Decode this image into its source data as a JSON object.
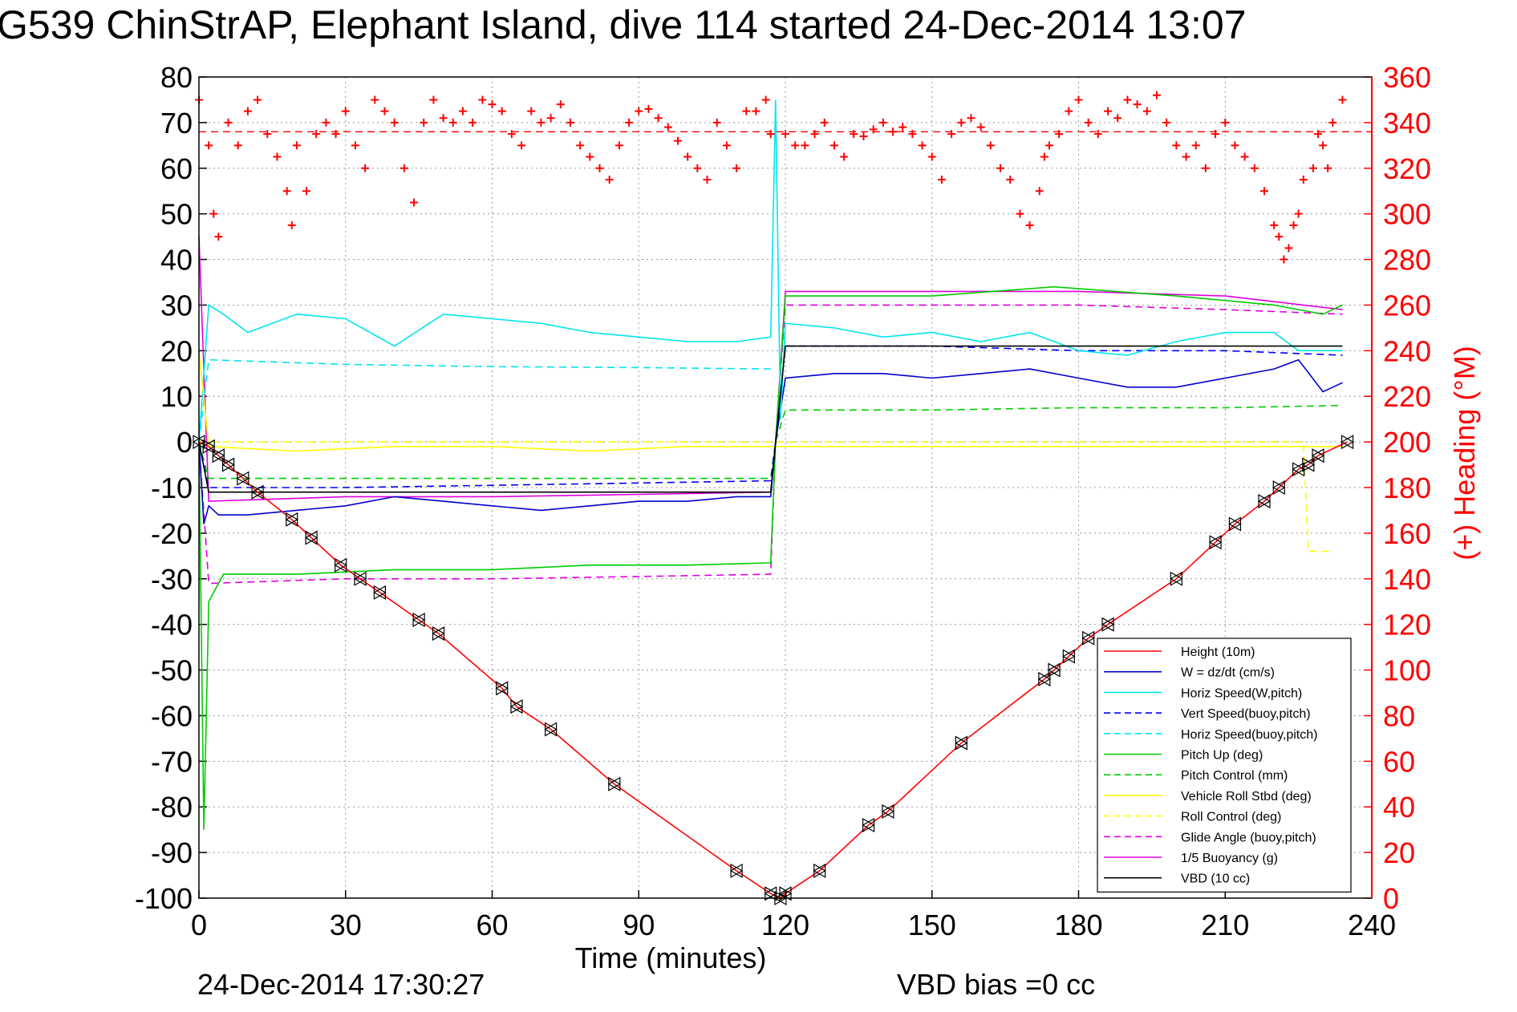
{
  "colors": {
    "height": "#ff0000",
    "w": "#0000cc",
    "horiz_speed": "#00e5ee",
    "vert_speed_buoy": "#0000ff",
    "horiz_speed_buoy": "#00e5ee",
    "pitch_up": "#00cc00",
    "pitch_control": "#00cc00",
    "roll": "#ffff00",
    "roll_control": "#ffff00",
    "glide_angle": "#dd00dd",
    "buoyancy": "#dd00dd",
    "vbd": "#000000",
    "heading": "#ff0000"
  },
  "chart_data": {
    "type": "line",
    "title": "G539 ChinStrAP, Elephant Island, dive 114 started 24-Dec-2014 13:07",
    "xlabel": "Time (minutes)",
    "ylabel": "",
    "y2label": "(+) Heading (°M)",
    "xlim": [
      0,
      240
    ],
    "ylim": [
      -100,
      80
    ],
    "y2lim": [
      0,
      360
    ],
    "grid": true,
    "legend_position": "lower-right",
    "xticks": [
      "0",
      "30",
      "60",
      "90",
      "120",
      "150",
      "180",
      "210",
      "240"
    ],
    "yticks": [
      "80",
      "70",
      "60",
      "50",
      "40",
      "30",
      "20",
      "10",
      "0",
      "-10",
      "-20",
      "-30",
      "-40",
      "-50",
      "-60",
      "-70",
      "-80",
      "-90",
      "-100"
    ],
    "y2ticks": [
      "360",
      "340",
      "320",
      "300",
      "280",
      "260",
      "240",
      "220",
      "200",
      "180",
      "160",
      "140",
      "120",
      "100",
      "80",
      "60",
      "40",
      "20",
      "0"
    ],
    "series": [
      {
        "name": "Height (10m)",
        "style": "solid",
        "color_key": "height",
        "x": [
          0,
          2,
          4,
          6,
          9,
          12,
          19,
          23,
          29,
          33,
          37,
          45,
          49,
          62,
          65,
          72,
          85,
          110,
          117,
          119,
          120,
          127,
          137,
          141,
          156,
          173,
          175,
          178,
          182,
          186,
          200,
          208,
          212,
          218,
          221,
          225,
          227,
          229,
          235
        ],
        "y": [
          0,
          -1,
          -3,
          -5,
          -8,
          -11,
          -17,
          -21,
          -27,
          -30,
          -33,
          -39,
          -42,
          -54,
          -58,
          -63,
          -75,
          -94,
          -99,
          -100,
          -99,
          -94,
          -84,
          -81,
          -66,
          -52,
          -50,
          -47,
          -43,
          -40,
          -30,
          -22,
          -18,
          -13,
          -10,
          -6,
          -5,
          -3,
          0
        ]
      },
      {
        "name": "W = dz/dt (cm/s)",
        "style": "solid",
        "color_key": "w",
        "x": [
          0,
          1,
          2,
          4,
          10,
          20,
          30,
          40,
          50,
          60,
          70,
          80,
          90,
          100,
          110,
          117,
          118,
          120,
          130,
          140,
          150,
          160,
          170,
          180,
          190,
          200,
          210,
          220,
          225,
          230,
          234
        ],
        "y": [
          0,
          -18,
          -14,
          -16,
          -16,
          -15,
          -14,
          -12,
          -13,
          -14,
          -15,
          -14,
          -13,
          -13,
          -12,
          -12,
          0,
          14,
          15,
          15,
          14,
          15,
          16,
          14,
          12,
          12,
          14,
          16,
          18,
          11,
          13
        ]
      },
      {
        "name": "Horiz Speed(W,pitch)",
        "style": "solid",
        "color_key": "horiz_speed",
        "x": [
          0,
          2,
          5,
          10,
          20,
          30,
          40,
          50,
          60,
          70,
          80,
          90,
          100,
          110,
          117,
          118,
          119,
          120,
          130,
          140,
          150,
          160,
          170,
          180,
          190,
          200,
          210,
          220,
          225,
          230,
          234
        ],
        "y": [
          0,
          30,
          28,
          24,
          28,
          27,
          21,
          28,
          27,
          26,
          24,
          23,
          22,
          22,
          23,
          75,
          5,
          26,
          25,
          23,
          24,
          22,
          24,
          20,
          19,
          22,
          24,
          24,
          20,
          20,
          20
        ]
      },
      {
        "name": "Vert Speed(buoy,pitch)",
        "style": "dashed",
        "color_key": "vert_speed_buoy",
        "x": [
          0,
          2,
          30,
          60,
          90,
          117,
          118,
          120,
          150,
          180,
          210,
          234
        ],
        "y": [
          0,
          -10,
          -10,
          -9.5,
          -9,
          -8.5,
          0,
          21,
          21,
          20,
          20,
          19
        ]
      },
      {
        "name": "Horiz Speed(buoy,pitch)",
        "style": "dashed",
        "color_key": "horiz_speed_buoy",
        "x": [
          0,
          2,
          30,
          60,
          90,
          117
        ],
        "y": [
          0,
          18,
          17,
          16.5,
          16.3,
          16
        ]
      },
      {
        "name": "Pitch Up (deg)",
        "style": "solid",
        "color_key": "pitch_up",
        "x": [
          0,
          1,
          2,
          5,
          20,
          40,
          60,
          80,
          100,
          117,
          118,
          120,
          150,
          175,
          200,
          220,
          230,
          234
        ],
        "y": [
          0,
          -85,
          -35,
          -29,
          -29,
          -28,
          -28,
          -27,
          -27,
          -26.5,
          0,
          32,
          32,
          34,
          32,
          30,
          28,
          30
        ]
      },
      {
        "name": "Pitch Control (mm)",
        "style": "dashed",
        "color_key": "pitch_control",
        "x": [
          0,
          2,
          30,
          60,
          90,
          117,
          118,
          120,
          150,
          180,
          210,
          234
        ],
        "y": [
          0,
          -8,
          -8,
          -8,
          -8,
          -8,
          0,
          7,
          7,
          7.5,
          7.5,
          8
        ]
      },
      {
        "name": "Vehicle Roll Stbd (deg)",
        "style": "solid",
        "color_key": "roll",
        "x": [
          0,
          2,
          20,
          40,
          60,
          80,
          100,
          117,
          120,
          140,
          160,
          180,
          200,
          220,
          226,
          234
        ],
        "y": [
          20,
          -1,
          -2,
          -1,
          -1,
          -2,
          -1,
          -1,
          -1,
          -1,
          -1,
          -1,
          -1,
          -1,
          -1,
          -1
        ]
      },
      {
        "name": "Roll Control (deg)",
        "style": "dashed",
        "color_key": "roll_control",
        "x": [
          0,
          2,
          117,
          120,
          226,
          227,
          232
        ],
        "y": [
          0,
          0,
          0,
          0,
          0,
          -24,
          -24
        ]
      },
      {
        "name": "Glide Angle (buoy,pitch)",
        "style": "dashed",
        "color_key": "glide_angle",
        "x": [
          0,
          2,
          30,
          60,
          90,
          117,
          118,
          120,
          150,
          180,
          210,
          234
        ],
        "y": [
          0,
          -31,
          -30,
          -30,
          -29.5,
          -29,
          0,
          30,
          30,
          30,
          29,
          28
        ]
      },
      {
        "name": "1/5 Buoyancy (g)",
        "style": "solid",
        "color_key": "buoyancy",
        "x": [
          0,
          2,
          30,
          60,
          90,
          117,
          118,
          120,
          150,
          180,
          210,
          234
        ],
        "y": [
          45,
          -13,
          -12,
          -12,
          -11.5,
          -11,
          0,
          33,
          33,
          33,
          32,
          29
        ]
      },
      {
        "name": "VBD (10 cc)",
        "style": "solid",
        "color_key": "vbd",
        "x": [
          0,
          2,
          117,
          120,
          234
        ],
        "y": [
          0,
          -11,
          -11,
          21,
          21
        ]
      }
    ],
    "heading": {
      "color_key": "heading",
      "marker": "+",
      "axis": "right",
      "reference": 336,
      "x": [
        0,
        2,
        3,
        4,
        6,
        8,
        10,
        12,
        14,
        16,
        18,
        19,
        20,
        22,
        24,
        26,
        28,
        30,
        32,
        34,
        36,
        38,
        40,
        42,
        44,
        46,
        48,
        50,
        52,
        54,
        56,
        58,
        60,
        62,
        64,
        66,
        68,
        70,
        72,
        74,
        76,
        78,
        80,
        82,
        84,
        86,
        88,
        90,
        92,
        94,
        96,
        98,
        100,
        102,
        104,
        106,
        108,
        110,
        112,
        114,
        116,
        117,
        120,
        122,
        124,
        126,
        128,
        130,
        132,
        134,
        136,
        138,
        140,
        142,
        144,
        146,
        148,
        150,
        152,
        154,
        156,
        158,
        160,
        162,
        164,
        166,
        168,
        170,
        172,
        173,
        174,
        176,
        178,
        180,
        182,
        184,
        186,
        188,
        190,
        192,
        194,
        196,
        198,
        200,
        202,
        204,
        206,
        208,
        210,
        212,
        214,
        216,
        218,
        220,
        221,
        222,
        223,
        224,
        225,
        226,
        228,
        229,
        230,
        231,
        232,
        234
      ],
      "y": [
        350,
        330,
        300,
        290,
        340,
        330,
        345,
        350,
        335,
        325,
        310,
        295,
        330,
        310,
        335,
        340,
        335,
        345,
        330,
        320,
        350,
        345,
        340,
        320,
        305,
        340,
        350,
        342,
        340,
        345,
        340,
        350,
        348,
        345,
        335,
        330,
        345,
        340,
        342,
        348,
        340,
        330,
        325,
        320,
        315,
        330,
        340,
        345,
        346,
        342,
        338,
        332,
        325,
        320,
        315,
        340,
        330,
        320,
        345,
        345,
        350,
        335,
        335,
        330,
        330,
        335,
        340,
        330,
        325,
        335,
        334,
        337,
        340,
        336,
        338,
        335,
        330,
        325,
        315,
        335,
        340,
        342,
        338,
        330,
        320,
        315,
        300,
        295,
        310,
        325,
        330,
        335,
        345,
        350,
        340,
        335,
        345,
        342,
        350,
        348,
        345,
        352,
        340,
        330,
        325,
        330,
        320,
        335,
        340,
        330,
        325,
        320,
        310,
        295,
        290,
        280,
        285,
        295,
        300,
        315,
        320,
        335,
        330,
        320,
        340,
        350
      ]
    },
    "height_markers": {
      "marker": "triangles",
      "color": "#000000",
      "x": [
        0,
        2,
        4,
        6,
        9,
        12,
        19,
        23,
        29,
        33,
        37,
        45,
        49,
        62,
        65,
        72,
        85,
        110,
        117,
        119,
        120,
        127,
        137,
        141,
        156,
        173,
        175,
        178,
        182,
        186,
        200,
        208,
        212,
        218,
        221,
        225,
        227,
        229,
        235
      ],
      "y": [
        0,
        -1,
        -3,
        -5,
        -8,
        -11,
        -17,
        -21,
        -27,
        -30,
        -33,
        -39,
        -42,
        -54,
        -58,
        -63,
        -75,
        -94,
        -99,
        -100,
        -99,
        -94,
        -84,
        -81,
        -66,
        -52,
        -50,
        -47,
        -43,
        -40,
        -30,
        -22,
        -18,
        -13,
        -10,
        -6,
        -5,
        -3,
        0
      ]
    },
    "footer_left": "24-Dec-2014 17:30:27",
    "footer_right": "VBD bias =0 cc"
  }
}
